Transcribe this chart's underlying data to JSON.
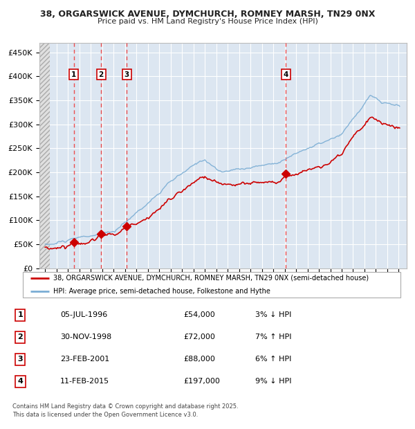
{
  "title_line1": "38, ORGARSWICK AVENUE, DYMCHURCH, ROMNEY MARSH, TN29 0NX",
  "title_line2": "Price paid vs. HM Land Registry's House Price Index (HPI)",
  "ylim": [
    0,
    470000
  ],
  "yticks": [
    0,
    50000,
    100000,
    150000,
    200000,
    250000,
    300000,
    350000,
    400000,
    450000
  ],
  "ytick_labels": [
    "£0",
    "£50K",
    "£100K",
    "£150K",
    "£200K",
    "£250K",
    "£300K",
    "£350K",
    "£400K",
    "£450K"
  ],
  "bg_color": "#dce6f1",
  "transactions": [
    {
      "date_num": 1996.51,
      "price": 54000,
      "label": "1"
    },
    {
      "date_num": 1998.91,
      "price": 72000,
      "label": "2"
    },
    {
      "date_num": 2001.15,
      "price": 88000,
      "label": "3"
    },
    {
      "date_num": 2015.11,
      "price": 197000,
      "label": "4"
    }
  ],
  "legend_property_label": "38, ORGARSWICK AVENUE, DYMCHURCH, ROMNEY MARSH, TN29 0NX (semi-detached house)",
  "legend_hpi_label": "HPI: Average price, semi-detached house, Folkestone and Hythe",
  "table_rows": [
    {
      "num": "1",
      "date": "05-JUL-1996",
      "price": "£54,000",
      "hpi": "3% ↓ HPI"
    },
    {
      "num": "2",
      "date": "30-NOV-1998",
      "price": "£72,000",
      "hpi": "7% ↑ HPI"
    },
    {
      "num": "3",
      "date": "23-FEB-2001",
      "price": "£88,000",
      "hpi": "6% ↑ HPI"
    },
    {
      "num": "4",
      "date": "11-FEB-2015",
      "price": "£197,000",
      "hpi": "9% ↓ HPI"
    }
  ],
  "footer": "Contains HM Land Registry data © Crown copyright and database right 2025.\nThis data is licensed under the Open Government Licence v3.0.",
  "property_line_color": "#cc0000",
  "hpi_line_color": "#7aadd4",
  "marker_color": "#cc0000",
  "dashed_line_color": "#ee3333",
  "xlim_start": 1993.5,
  "xlim_end": 2025.7
}
